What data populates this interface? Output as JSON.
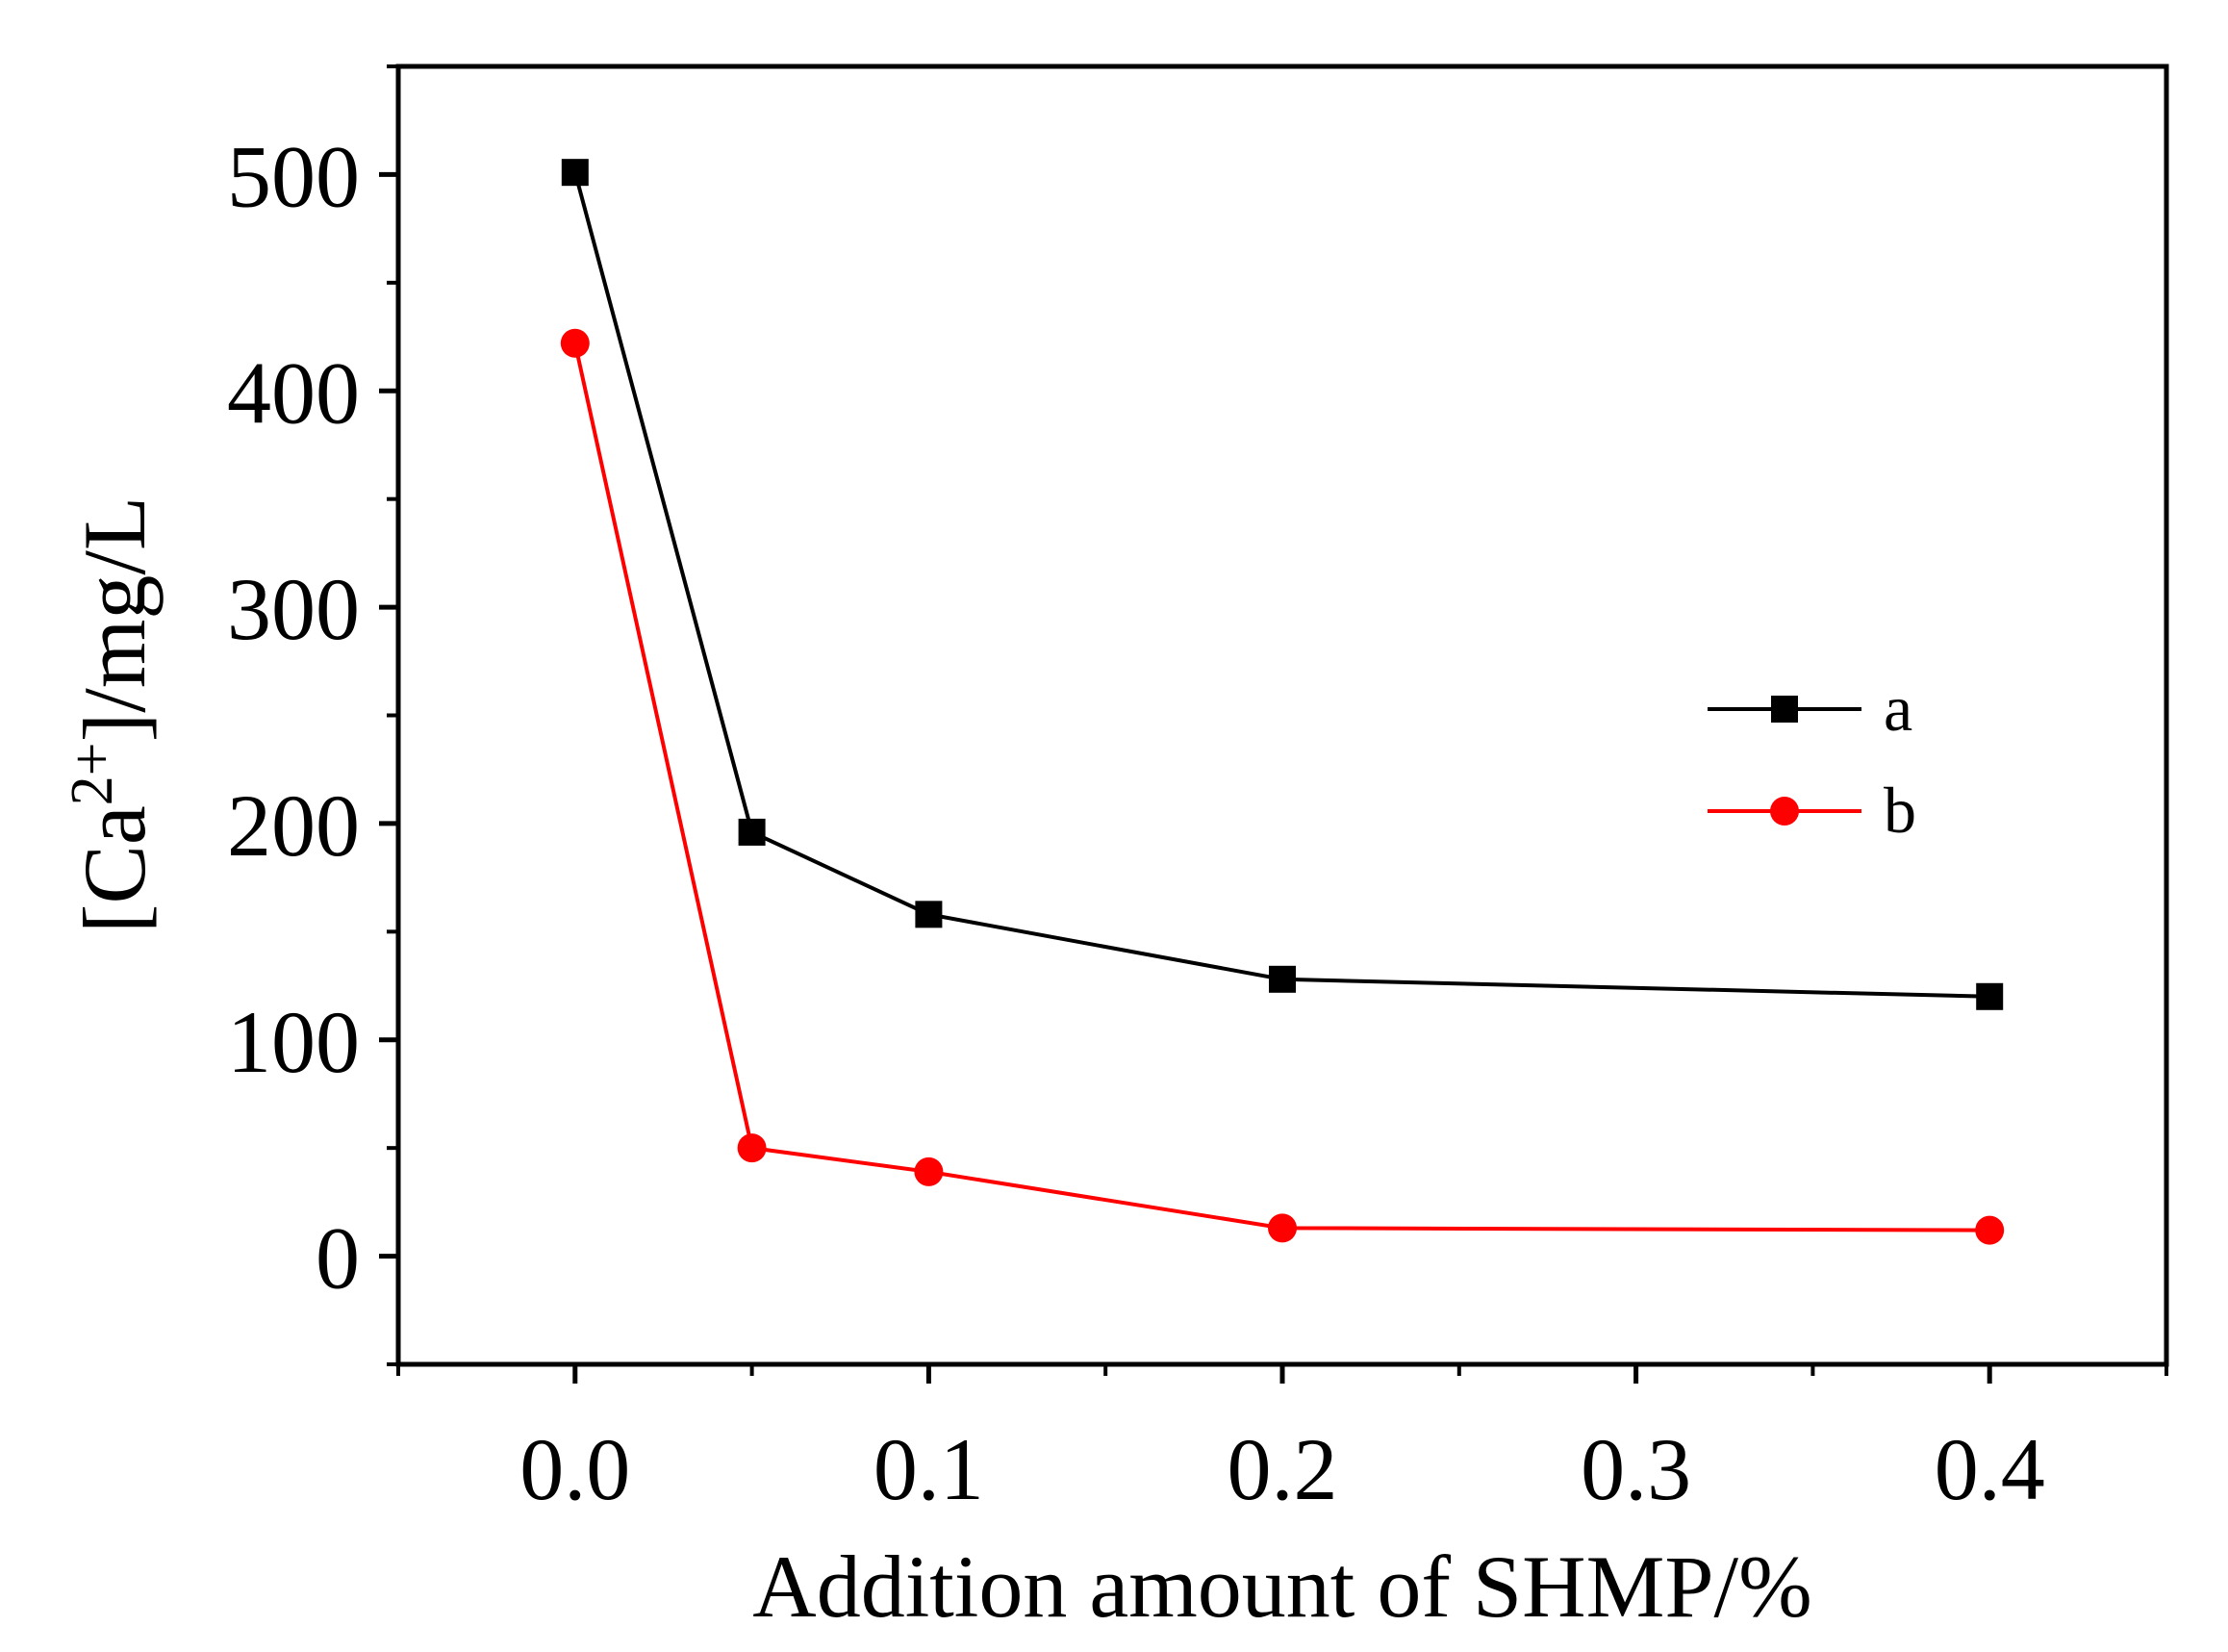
{
  "chart_data": {
    "type": "line",
    "xlabel": "Addition amount of SHMP/%",
    "ylabel": {
      "prefix": "[Ca",
      "superscript": "2+",
      "suffix": "]/mg/L"
    },
    "xlim": [
      -0.05,
      0.45
    ],
    "ylim": [
      -50,
      550
    ],
    "xticks": [
      0.0,
      0.1,
      0.2,
      0.3,
      0.4
    ],
    "xtick_labels": [
      "0.0",
      "0.1",
      "0.2",
      "0.3",
      "0.4"
    ],
    "yticks": [
      0,
      100,
      200,
      300,
      400,
      500
    ],
    "ytick_labels": [
      "0",
      "100",
      "200",
      "300",
      "400",
      "500"
    ],
    "x": [
      0.0,
      0.05,
      0.1,
      0.2,
      0.4
    ],
    "series": [
      {
        "name": "a",
        "color": "#000000",
        "marker": "square",
        "values": [
          501,
          196,
          158,
          128,
          120
        ]
      },
      {
        "name": "b",
        "color": "#ff0000",
        "marker": "circle",
        "values": [
          422,
          50,
          39,
          13,
          12
        ]
      }
    ],
    "legend": {
      "position": "right-middle"
    },
    "grid": false
  }
}
